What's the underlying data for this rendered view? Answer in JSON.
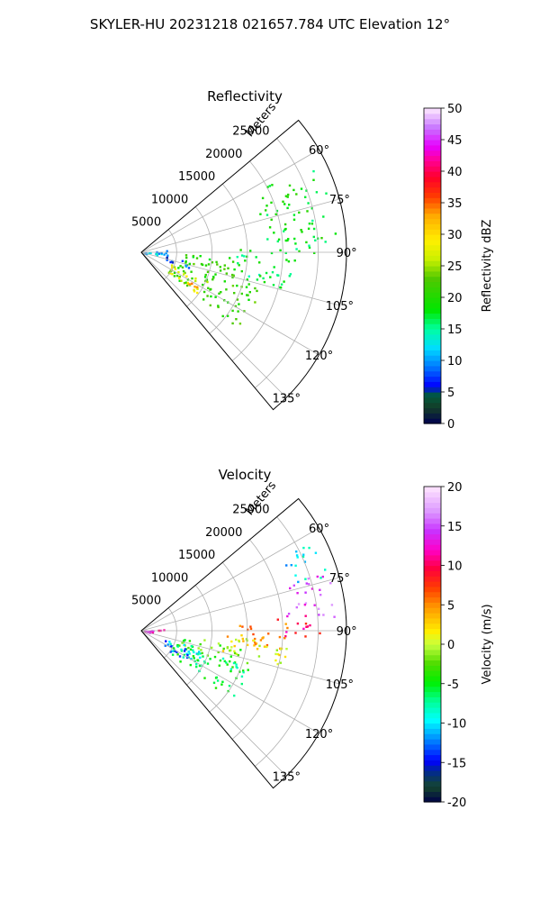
{
  "figure": {
    "title": "SKYLER-HU  20231218  021657.784 UTC Elevation 12°"
  },
  "chart_data": [
    {
      "type": "heatmap",
      "projection": "polar-sector",
      "title": "Reflectivity",
      "radial_label": "Meters",
      "radial_ticks": [
        5000,
        10000,
        15000,
        20000,
        25000
      ],
      "radial_max": 29000,
      "angle_range_deg": [
        50,
        140
      ],
      "angle_ticks": [
        60,
        75,
        90,
        105,
        120,
        135
      ],
      "grid": true,
      "colorbar": {
        "label": "Reflectivity dBZ",
        "min": 0,
        "max": 50,
        "ticks": [
          0,
          5,
          10,
          15,
          20,
          25,
          30,
          35,
          40,
          45,
          50
        ],
        "palette": "pyart_NWSRef"
      },
      "echo_regions": [
        {
          "az": [
            62,
            90
          ],
          "range": [
            17500,
            27500
          ],
          "value": 18
        },
        {
          "az": [
            88,
            104
          ],
          "range": [
            13000,
            22000
          ],
          "value": 17
        },
        {
          "az": [
            92,
            100
          ],
          "range": [
            6000,
            14000
          ],
          "value": 20
        },
        {
          "az": [
            100,
            128
          ],
          "range": [
            4500,
            17500
          ],
          "value": 21
        },
        {
          "az": [
            112,
            127
          ],
          "range": [
            4500,
            10500
          ],
          "value": 27
        },
        {
          "az": [
            120,
            126
          ],
          "range": [
            7000,
            9500
          ],
          "value": 36
        },
        {
          "az": [
            84,
            100
          ],
          "range": [
            0,
            4000
          ],
          "value": 12
        },
        {
          "az": [
            100,
            110
          ],
          "range": [
            3500,
            7500
          ],
          "value": 8
        }
      ]
    },
    {
      "type": "heatmap",
      "projection": "polar-sector",
      "title": "Velocity",
      "radial_label": "Meters",
      "radial_ticks": [
        5000,
        10000,
        15000,
        20000,
        25000
      ],
      "radial_max": 29000,
      "angle_range_deg": [
        50,
        140
      ],
      "angle_ticks": [
        60,
        75,
        90,
        105,
        120,
        135
      ],
      "grid": true,
      "colorbar": {
        "label": "Velocity (m/s)",
        "min": -20,
        "max": 20,
        "ticks": [
          -20,
          -15,
          -10,
          -5,
          0,
          5,
          10,
          15,
          20
        ],
        "palette": "pyart_BuDRd18"
      },
      "echo_regions": [
        {
          "az": [
            62,
            74
          ],
          "range": [
            22000,
            27500
          ],
          "value": -10
        },
        {
          "az": [
            72,
            86
          ],
          "range": [
            20500,
            27500
          ],
          "value": 15
        },
        {
          "az": [
            84,
            92
          ],
          "range": [
            19000,
            25500
          ],
          "value": 10
        },
        {
          "az": [
            86,
            98
          ],
          "range": [
            12000,
            21000
          ],
          "value": 5
        },
        {
          "az": [
            94,
            104
          ],
          "range": [
            8000,
            21000
          ],
          "value": 1
        },
        {
          "az": [
            100,
            112
          ],
          "range": [
            5500,
            16500
          ],
          "value": -3
        },
        {
          "az": [
            108,
            128
          ],
          "range": [
            5000,
            16000
          ],
          "value": -6
        },
        {
          "az": [
            106,
            122
          ],
          "range": [
            4000,
            9000
          ],
          "value": -9
        },
        {
          "az": [
            112,
            126
          ],
          "range": [
            3500,
            7500
          ],
          "value": -13
        },
        {
          "az": [
            84,
            100
          ],
          "range": [
            0,
            3500
          ],
          "value": 12
        }
      ]
    }
  ]
}
